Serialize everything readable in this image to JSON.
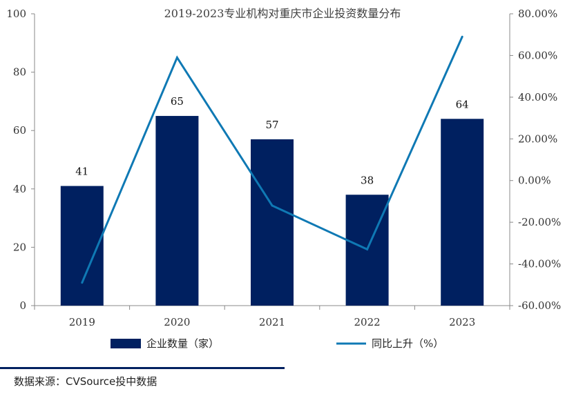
{
  "chart_data": {
    "type": "bar+line",
    "title": "2019-2023专业机构对重庆市企业投资数量分布",
    "categories": [
      "2019",
      "2020",
      "2021",
      "2022",
      "2023"
    ],
    "series": [
      {
        "name": "企业数量（家）",
        "type": "bar",
        "axis": "left",
        "values": [
          41,
          65,
          57,
          38,
          64
        ],
        "color": "#002060"
      },
      {
        "name": "同比上升（%）",
        "type": "line",
        "axis": "right",
        "values": [
          -49.0,
          59.0,
          -12.0,
          -33.0,
          69.0
        ],
        "color": "#0F79B4"
      }
    ],
    "left_axis": {
      "min": 0,
      "max": 100,
      "ticks": [
        "0",
        "20",
        "40",
        "60",
        "80",
        "100"
      ]
    },
    "right_axis": {
      "min": -60,
      "max": 80,
      "ticks": [
        "-60.00%",
        "-40.00%",
        "-20.00%",
        "0.00%",
        "20.00%",
        "40.00%",
        "60.00%",
        "80.00%"
      ]
    },
    "data_labels": [
      "41",
      "65",
      "57",
      "38",
      "64"
    ],
    "legend": [
      "企业数量（家）",
      "同比上升（%）"
    ],
    "legend_position": "bottom"
  },
  "footer": {
    "source": "数据来源：CVSource投中数据",
    "bar_color": "#002060"
  }
}
